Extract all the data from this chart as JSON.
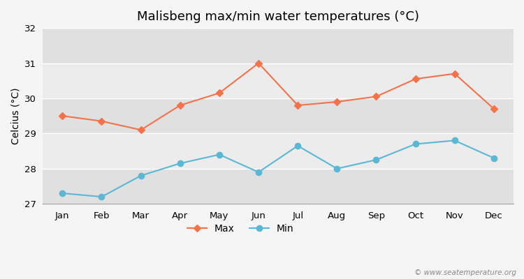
{
  "title": "Malisbeng max/min water temperatures (°C)",
  "ylabel": "Celcius (°C)",
  "months": [
    "Jan",
    "Feb",
    "Mar",
    "Apr",
    "May",
    "Jun",
    "Jul",
    "Aug",
    "Sep",
    "Oct",
    "Nov",
    "Dec"
  ],
  "max_temps": [
    29.5,
    29.35,
    29.1,
    29.8,
    30.15,
    31.0,
    29.8,
    29.9,
    30.05,
    30.55,
    30.7,
    29.7
  ],
  "min_temps": [
    27.3,
    27.2,
    27.8,
    28.15,
    28.4,
    27.9,
    28.65,
    28.0,
    28.25,
    28.7,
    28.8,
    28.3
  ],
  "max_color": "#f4724a",
  "min_color": "#5ab8d5",
  "ylim": [
    27,
    32
  ],
  "yticks": [
    27,
    28,
    29,
    30,
    31,
    32
  ],
  "figure_bg": "#f5f5f5",
  "band_light": "#ececec",
  "band_dark": "#e0e0e0",
  "grid_color": "#ffffff",
  "watermark": "© www.seatemperature.org",
  "title_fontsize": 13,
  "label_fontsize": 10,
  "tick_fontsize": 9.5
}
